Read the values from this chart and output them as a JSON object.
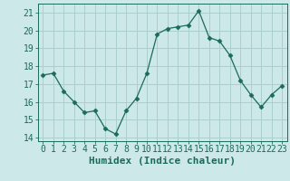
{
  "x": [
    0,
    1,
    2,
    3,
    4,
    5,
    6,
    7,
    8,
    9,
    10,
    11,
    12,
    13,
    14,
    15,
    16,
    17,
    18,
    19,
    20,
    21,
    22,
    23
  ],
  "y": [
    17.5,
    17.6,
    16.6,
    16.0,
    15.4,
    15.5,
    14.5,
    14.2,
    15.5,
    16.2,
    17.6,
    19.8,
    20.1,
    20.2,
    20.3,
    21.1,
    19.6,
    19.4,
    18.6,
    17.2,
    16.4,
    15.7,
    16.4,
    16.9
  ],
  "line_color": "#1a6b5a",
  "marker": "D",
  "marker_size": 2.5,
  "bg_color": "#cce8e8",
  "grid_color": "#aacfcf",
  "xlabel": "Humidex (Indice chaleur)",
  "ylim": [
    13.8,
    21.5
  ],
  "xlim": [
    -0.5,
    23.5
  ],
  "yticks": [
    14,
    15,
    16,
    17,
    18,
    19,
    20,
    21
  ],
  "xticks": [
    0,
    1,
    2,
    3,
    4,
    5,
    6,
    7,
    8,
    9,
    10,
    11,
    12,
    13,
    14,
    15,
    16,
    17,
    18,
    19,
    20,
    21,
    22,
    23
  ],
  "tick_color": "#1a6b5a",
  "tick_label_color": "#1a6b5a",
  "xlabel_color": "#1a6b5a",
  "xlabel_fontsize": 8,
  "tick_fontsize": 7
}
